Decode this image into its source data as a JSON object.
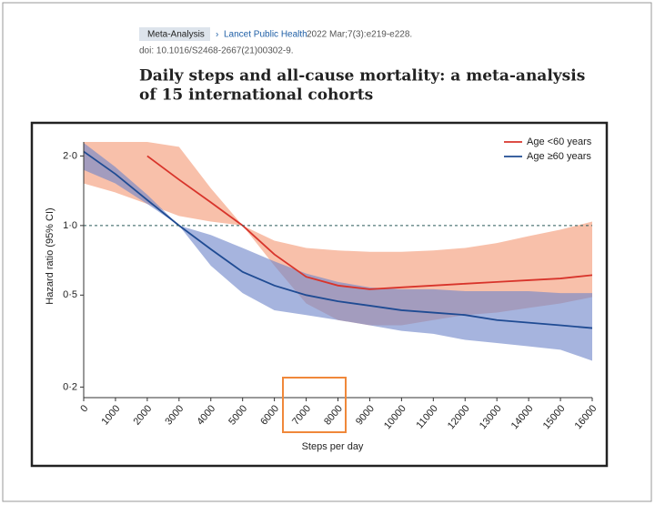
{
  "header": {
    "badge": "Meta-Analysis",
    "journal": "Lancet Public Health.",
    "citation": "2022 Mar;7(3):e219-e228.",
    "doi": "doi: 10.1016/S2468-2667(21)00302-9.",
    "title_line1": "Daily steps and all-cause mortality: a meta-analysis",
    "title_line2": "of 15 international cohorts"
  },
  "chart_data": {
    "type": "line",
    "x_label": "Steps per day",
    "y_label": "Hazard ratio (95% CI)",
    "x": [
      0,
      1000,
      2000,
      3000,
      4000,
      5000,
      6000,
      7000,
      8000,
      9000,
      10000,
      11000,
      12000,
      13000,
      14000,
      15000,
      16000
    ],
    "series": [
      {
        "name": "Age <60 years",
        "color": "#d8342b",
        "band_color": "#f39a76",
        "values": [
          null,
          null,
          2.0,
          1.58,
          1.26,
          1.0,
          0.75,
          0.6,
          0.55,
          0.53,
          0.54,
          0.55,
          0.56,
          0.57,
          0.58,
          0.59,
          0.61
        ],
        "upper": [
          2.3,
          2.3,
          2.3,
          2.19,
          1.45,
          1.0,
          0.86,
          0.8,
          0.78,
          0.77,
          0.77,
          0.78,
          0.8,
          0.84,
          0.9,
          0.96,
          1.04
        ],
        "lower": [
          1.52,
          1.39,
          1.24,
          1.1,
          1.04,
          1.0,
          0.67,
          0.46,
          0.39,
          0.37,
          0.37,
          0.39,
          0.41,
          0.42,
          0.44,
          0.46,
          0.49
        ]
      },
      {
        "name": "Age ≥60 years",
        "color": "#1f4b93",
        "band_color": "#6f86c9",
        "values": [
          2.09,
          1.67,
          1.29,
          1.0,
          0.79,
          0.63,
          0.55,
          0.5,
          0.47,
          0.45,
          0.43,
          0.42,
          0.41,
          0.39,
          0.38,
          0.37,
          0.36
        ],
        "upper": [
          2.28,
          1.79,
          1.36,
          1.0,
          0.91,
          0.8,
          0.7,
          0.62,
          0.57,
          0.54,
          0.53,
          0.53,
          0.52,
          0.52,
          0.52,
          0.51,
          0.51
        ],
        "lower": [
          1.74,
          1.52,
          1.24,
          1.0,
          0.67,
          0.51,
          0.43,
          0.41,
          0.39,
          0.37,
          0.35,
          0.34,
          0.32,
          0.31,
          0.3,
          0.29,
          0.26
        ]
      }
    ],
    "xlim": [
      0,
      16000
    ],
    "xticks": [
      0,
      1000,
      2000,
      3000,
      4000,
      5000,
      6000,
      7000,
      8000,
      9000,
      10000,
      11000,
      12000,
      13000,
      14000,
      15000,
      16000
    ],
    "ylim": [
      0.18,
      2.3
    ],
    "log_y": true,
    "yticks": [
      {
        "value": 0.2,
        "label": "0·2"
      },
      {
        "value": 0.5,
        "label": "0·5"
      },
      {
        "value": 1.0,
        "label": "1·0"
      },
      {
        "value": 2.0,
        "label": "2·0"
      }
    ],
    "reference_line": 1.0,
    "legend": "top-right"
  }
}
